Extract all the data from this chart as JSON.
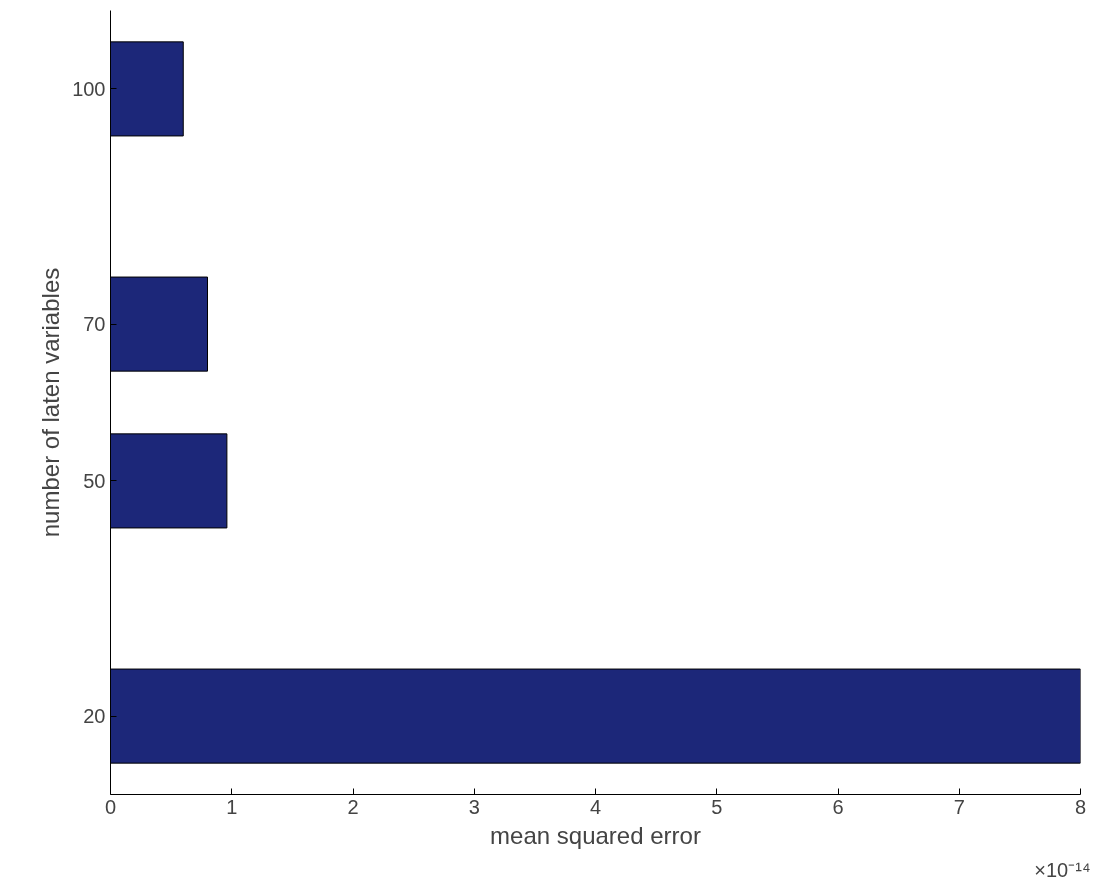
{
  "chart_data": {
    "type": "bar",
    "orientation": "horizontal",
    "x": [
      20,
      50,
      70,
      100
    ],
    "values": [
      8,
      0.96,
      0.8,
      0.6
    ],
    "color": "#1c2779",
    "xlim": [
      0,
      8
    ],
    "xticks": [
      0,
      1,
      2,
      3,
      4,
      5,
      6,
      7,
      8
    ],
    "ylim": [
      10,
      110
    ],
    "yticks": [
      20,
      50,
      70,
      100
    ],
    "xlabel": "mean squared error",
    "ylabel": "number of laten variables",
    "annotations": [
      "×10⁻¹⁴"
    ],
    "grid": false
  }
}
